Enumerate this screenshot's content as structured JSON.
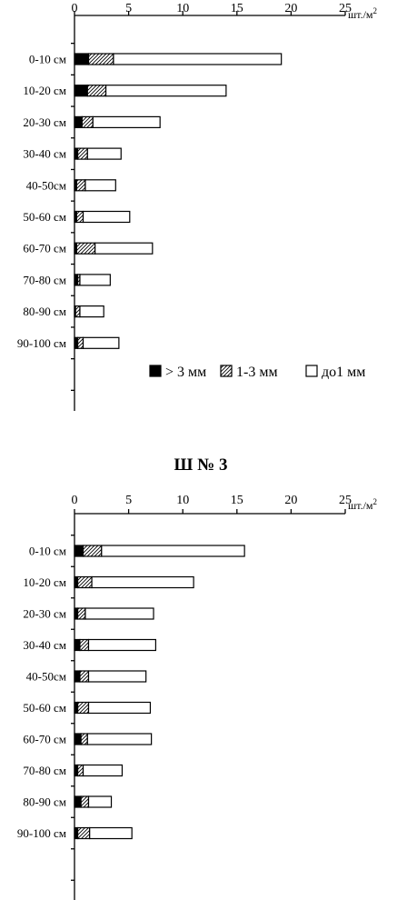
{
  "colors": {
    "solid": "#000000",
    "open": "#ffffff",
    "stroke": "#000000"
  },
  "legend": {
    "items": [
      {
        "label": "> 3 мм",
        "pattern": "solid"
      },
      {
        "label": "1-3 мм",
        "pattern": "hatch"
      },
      {
        "label": "до1 мм",
        "pattern": "open"
      }
    ]
  },
  "chart_data": [
    {
      "type": "bar",
      "orientation": "horizontal",
      "stacked": true,
      "title": "",
      "unit": "шт./м",
      "unit_superscript": "2",
      "xlim": [
        0,
        25
      ],
      "xticks": [
        0,
        5,
        10,
        15,
        20,
        25
      ],
      "categories": [
        "0-10 см",
        "10-20 см",
        "20-30 см",
        "30-40 см",
        "40-50см",
        "50-60 см",
        "60-70 см",
        "70-80 см",
        "80-90 см",
        "90-100 см"
      ],
      "series": [
        {
          "name": "> 3 мм",
          "values": [
            1.3,
            1.2,
            0.7,
            0.3,
            0.2,
            0.2,
            0.2,
            0.3,
            0.1,
            0.3
          ]
        },
        {
          "name": "1-3 мм",
          "values": [
            2.3,
            1.7,
            1.0,
            0.9,
            0.8,
            0.6,
            1.7,
            0.2,
            0.4,
            0.5
          ]
        },
        {
          "name": "до1 мм",
          "values": [
            15.5,
            11.1,
            6.2,
            3.1,
            2.8,
            4.3,
            5.3,
            2.8,
            2.2,
            3.3
          ]
        }
      ],
      "grid": false,
      "legend_placement": "bottom-right"
    },
    {
      "type": "bar",
      "orientation": "horizontal",
      "stacked": true,
      "title": "Ш № 3",
      "unit": "шт./м",
      "unit_superscript": "2",
      "xlim": [
        0,
        25
      ],
      "xticks": [
        0,
        5,
        10,
        15,
        20,
        25
      ],
      "categories": [
        "0-10 см",
        "10-20 см",
        "20-30 см",
        "30-40 см",
        "40-50см",
        "50-60 см",
        "60-70 см",
        "70-80 см",
        "80-90 см",
        "90-100 см"
      ],
      "series": [
        {
          "name": "> 3 мм",
          "values": [
            0.8,
            0.3,
            0.3,
            0.5,
            0.5,
            0.3,
            0.6,
            0.3,
            0.6,
            0.3
          ]
        },
        {
          "name": "1-3 мм",
          "values": [
            1.7,
            1.3,
            0.7,
            0.8,
            0.8,
            1.0,
            0.6,
            0.5,
            0.7,
            1.1
          ]
        },
        {
          "name": "до1 мм",
          "values": [
            13.2,
            9.4,
            6.3,
            6.2,
            5.3,
            5.7,
            5.9,
            3.6,
            2.1,
            3.9
          ]
        }
      ],
      "grid": false
    }
  ]
}
